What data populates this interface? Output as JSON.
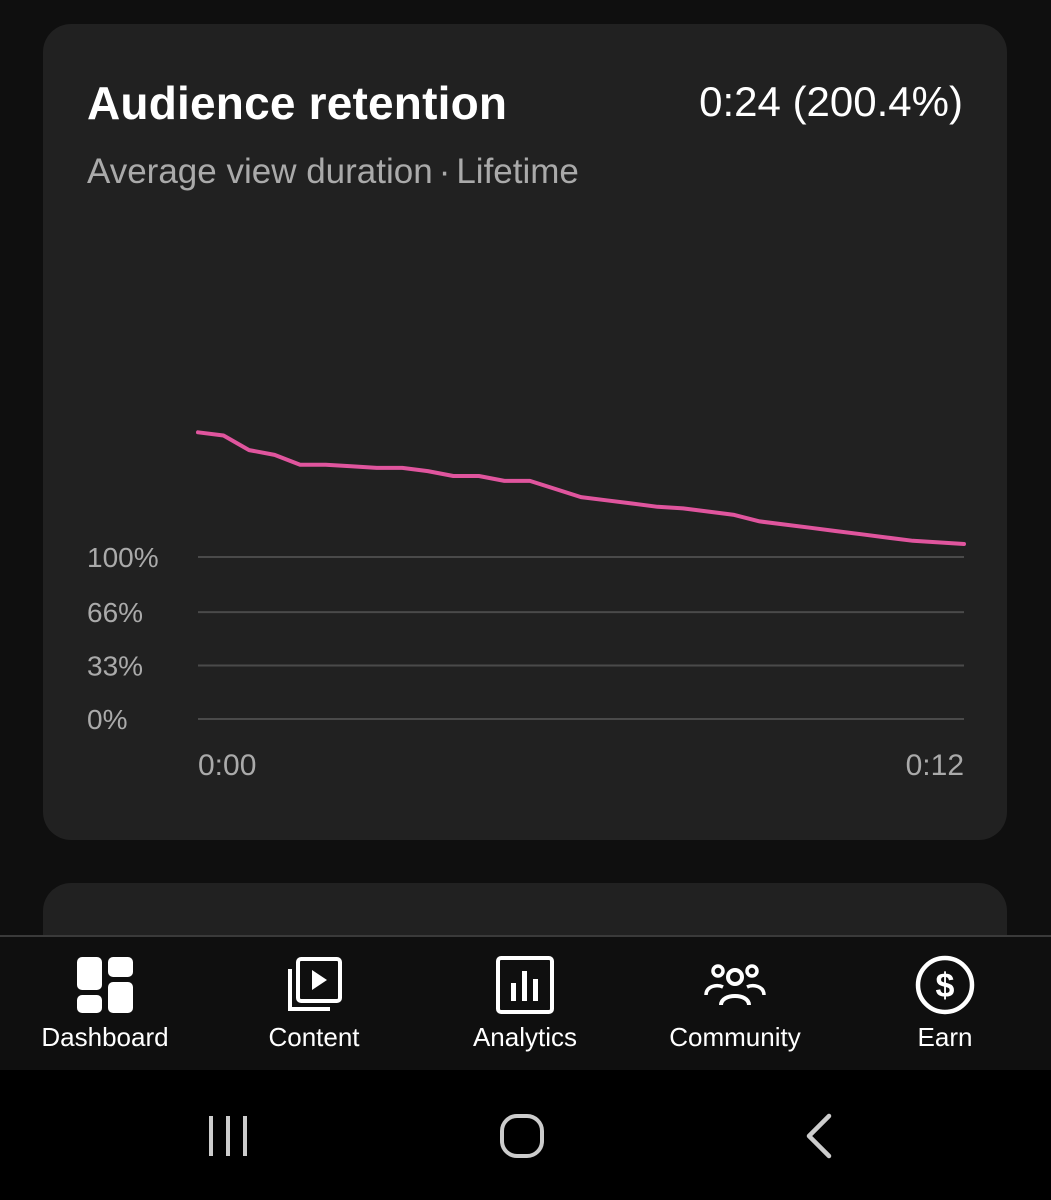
{
  "card": {
    "title": "Audience retention",
    "metric": "0:24 (200.4%)",
    "subtitle_left": "Average view duration",
    "subtitle_sep": "·",
    "subtitle_right": "Lifetime"
  },
  "chart_data": {
    "type": "line",
    "series": [
      {
        "color": "#e0559e",
        "x": [
          0,
          0.4,
          0.8,
          1.2,
          1.6,
          2.0,
          2.4,
          2.8,
          3.2,
          3.6,
          4.0,
          4.4,
          4.8,
          5.2,
          5.6,
          6.0,
          6.4,
          6.8,
          7.2,
          7.6,
          8.0,
          8.4,
          8.8,
          9.2,
          9.6,
          10.0,
          10.4,
          10.8,
          11.2,
          11.6,
          12.0
        ],
        "values": [
          177,
          175,
          166,
          163,
          157,
          157,
          156,
          155,
          155,
          153,
          150,
          150,
          147,
          147,
          142,
          137,
          135,
          133,
          131,
          130,
          128,
          126,
          122,
          120,
          118,
          116,
          114,
          112,
          110,
          109,
          108
        ]
      }
    ],
    "x_ticks": [
      "0:00",
      "0:12"
    ],
    "xlim": [
      0,
      12
    ],
    "y_ticks": [
      "100%",
      "66%",
      "33%",
      "0%"
    ],
    "y_tick_values": [
      100,
      66,
      33,
      0
    ],
    "grid": true,
    "legend": "none"
  },
  "nav": {
    "items": [
      {
        "label": "Dashboard",
        "icon": "dashboard-icon"
      },
      {
        "label": "Content",
        "icon": "content-icon"
      },
      {
        "label": "Analytics",
        "icon": "analytics-icon"
      },
      {
        "label": "Community",
        "icon": "community-icon"
      },
      {
        "label": "Earn",
        "icon": "earn-icon"
      }
    ]
  },
  "system_nav": {
    "recents": "recents-icon",
    "home": "home-icon",
    "back": "back-icon"
  }
}
